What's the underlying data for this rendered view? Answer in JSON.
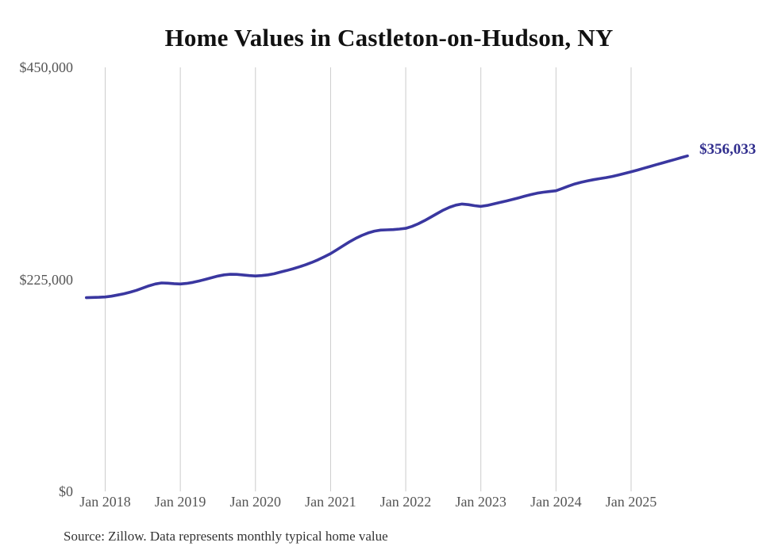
{
  "colors": {
    "background": "#ffffff",
    "title_text": "#111111",
    "tick_text": "#555555",
    "source_text": "#333333",
    "gridline": "#cccccc",
    "line": "#3a37a0",
    "end_label_text": "#312e8e"
  },
  "chart_data": {
    "type": "line",
    "title": "Home Values in Castleton-on-Hudson, NY",
    "source_note": "Source: Zillow. Data represents monthly typical home value",
    "xlabel": "",
    "ylabel": "",
    "ylim": [
      0,
      450000
    ],
    "grid": "vertical-only",
    "legend": "none",
    "end_label": "$356,033",
    "y_ticks": [
      {
        "label": "$0",
        "value": 0
      },
      {
        "label": "$225,000",
        "value": 225000
      },
      {
        "label": "$450,000",
        "value": 450000
      }
    ],
    "x_ticks": [
      {
        "label": "Jan 2018",
        "month": "2018-01"
      },
      {
        "label": "Jan 2019",
        "month": "2019-01"
      },
      {
        "label": "Jan 2020",
        "month": "2020-01"
      },
      {
        "label": "Jan 2021",
        "month": "2021-01"
      },
      {
        "label": "Jan 2022",
        "month": "2022-01"
      },
      {
        "label": "Jan 2023",
        "month": "2023-01"
      },
      {
        "label": "Jan 2024",
        "month": "2024-01"
      },
      {
        "label": "Jan 2025",
        "month": "2025-01"
      }
    ],
    "series": [
      {
        "name": "Monthly typical home value",
        "frequency": "monthly",
        "start_month": "2017-10",
        "end_month": "2025-10",
        "end_value": 356033,
        "values": [
          205600,
          205800,
          206000,
          206300,
          207200,
          208400,
          209800,
          211500,
          213400,
          215800,
          218200,
          220100,
          221200,
          221000,
          220500,
          220100,
          220700,
          221800,
          223300,
          225000,
          226800,
          228500,
          229800,
          230400,
          230300,
          229700,
          229000,
          228600,
          229000,
          229800,
          231000,
          232700,
          234400,
          236300,
          238300,
          240500,
          243000,
          245800,
          249000,
          252300,
          256500,
          260700,
          264800,
          268500,
          271700,
          274300,
          276200,
          277300,
          277600,
          277800,
          278400,
          279200,
          281200,
          284000,
          287300,
          291000,
          294800,
          298500,
          301500,
          303800,
          305000,
          304300,
          303200,
          302500,
          303500,
          305000,
          306600,
          308100,
          309700,
          311500,
          313300,
          315000,
          316500,
          317500,
          318300,
          319000,
          321500,
          324000,
          326300,
          328000,
          329500,
          330800,
          331900,
          333000,
          334300,
          335800,
          337500,
          339200,
          341000,
          342900,
          344800,
          346700,
          348600,
          350400,
          352300,
          354200,
          356033
        ]
      }
    ]
  }
}
